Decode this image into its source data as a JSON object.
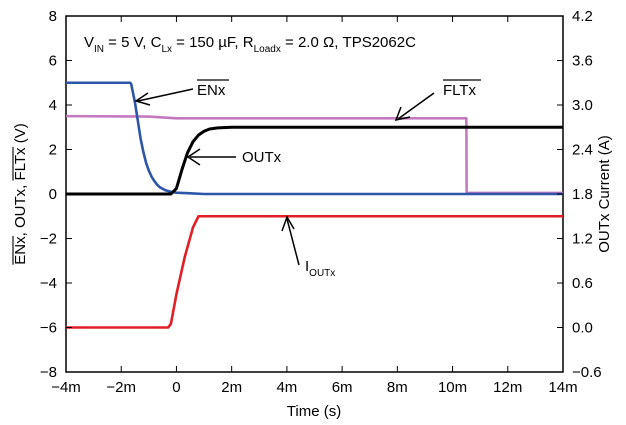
{
  "chart_data": {
    "type": "line",
    "title": "",
    "conditions": {
      "vin_label": "V",
      "vin_sub": "IN",
      "vin_value": " = 5 V, ",
      "c_label": "C",
      "c_sub": "Lx",
      "c_value": " = 150 µF, ",
      "r_label": "R",
      "r_sub": "Loadx",
      "r_value": " = 2.0 Ω, TPS2062C"
    },
    "xlabel": "Time (s)",
    "ylabel_left": {
      "en": "ENx",
      "sep1": ", OUTx, ",
      "flt": "FLTx",
      "unit": " (V)"
    },
    "ylabel_right": "OUTx Current (A)",
    "xlim": [
      -0.004,
      0.014
    ],
    "ylim_left": [
      -8,
      8
    ],
    "ylim_right": [
      -0.6,
      4.2
    ],
    "x_ticks": [
      {
        "value": -0.004,
        "label": "−4m"
      },
      {
        "value": -0.002,
        "label": "−2m"
      },
      {
        "value": 0,
        "label": "0"
      },
      {
        "value": 0.002,
        "label": "2m"
      },
      {
        "value": 0.004,
        "label": "4m"
      },
      {
        "value": 0.006,
        "label": "6m"
      },
      {
        "value": 0.008,
        "label": "8m"
      },
      {
        "value": 0.01,
        "label": "10m"
      },
      {
        "value": 0.012,
        "label": "12m"
      },
      {
        "value": 0.014,
        "label": "14m"
      }
    ],
    "y_ticks_left": [
      {
        "value": 8,
        "label": "8"
      },
      {
        "value": 6,
        "label": "6"
      },
      {
        "value": 4,
        "label": "4"
      },
      {
        "value": 2,
        "label": "2"
      },
      {
        "value": 0,
        "label": "0"
      },
      {
        "value": -2,
        "label": "−2"
      },
      {
        "value": -4,
        "label": "−4"
      },
      {
        "value": -6,
        "label": "−6"
      },
      {
        "value": -8,
        "label": "−8"
      }
    ],
    "y_ticks_right": [
      {
        "value": 4.2,
        "label": "4.2"
      },
      {
        "value": 3.6,
        "label": "3.6"
      },
      {
        "value": 3.0,
        "label": "3.0"
      },
      {
        "value": 2.4,
        "label": "2.4"
      },
      {
        "value": 1.8,
        "label": "1.8"
      },
      {
        "value": 1.2,
        "label": "1.2"
      },
      {
        "value": 0.6,
        "label": "0.6"
      },
      {
        "value": 0.0,
        "label": "0.0"
      },
      {
        "value": -0.6,
        "label": "−0.6"
      }
    ],
    "grid": false,
    "series": [
      {
        "name": "ENx",
        "axis": "left",
        "color": "#2d55a8",
        "x": [
          -0.004,
          -0.00168,
          -0.00164,
          -0.0016,
          -0.0015,
          -0.0014,
          -0.0013,
          -0.0012,
          -0.0011,
          -0.001,
          -0.0009,
          -0.0008,
          -0.0007,
          -0.0006,
          -0.0004,
          -0.0002,
          0.0,
          0.0005,
          0.001,
          0.014
        ],
        "y": [
          5.0,
          5.0,
          4.95,
          4.7,
          4.1,
          3.3,
          2.5,
          1.9,
          1.4,
          1.05,
          0.78,
          0.58,
          0.42,
          0.3,
          0.17,
          0.1,
          0.06,
          0.03,
          0.0,
          0.0
        ]
      },
      {
        "name": "OUTx",
        "axis": "left",
        "color": "#000000",
        "x": [
          -0.004,
          -0.0002,
          0.0,
          0.0002,
          0.0004,
          0.0006,
          0.0008,
          0.001,
          0.0012,
          0.0015,
          0.002,
          0.003,
          0.014
        ],
        "y": [
          0.0,
          0.0,
          0.25,
          1.1,
          1.85,
          2.35,
          2.65,
          2.82,
          2.92,
          2.97,
          3.0,
          3.0,
          3.0
        ]
      },
      {
        "name": "FLTx",
        "axis": "left",
        "color": "#c47ac0",
        "x": [
          -0.004,
          -0.001,
          0.0,
          0.0015,
          0.0105,
          0.01051,
          0.014
        ],
        "y": [
          3.5,
          3.48,
          3.4,
          3.4,
          3.4,
          0.05,
          0.05
        ]
      },
      {
        "name": "IOUTx",
        "axis": "right",
        "color": "#e21f26",
        "x": [
          -0.004,
          -0.0003,
          -0.0002,
          0.0,
          0.0003,
          0.0006,
          0.0008,
          0.0012,
          0.014
        ],
        "y": [
          0.0,
          0.0,
          0.05,
          0.45,
          0.95,
          1.35,
          1.5,
          1.5,
          1.5
        ]
      }
    ],
    "annotations": [
      {
        "series": "ENx",
        "text": "ENx",
        "overline": true
      },
      {
        "series": "FLTx",
        "text": "FLTx",
        "overline": true
      },
      {
        "series": "OUTx",
        "text": "OUTx",
        "overline": false
      },
      {
        "series": "IOUTx",
        "text": "I",
        "sub": "OUTx",
        "overline": false
      }
    ]
  }
}
